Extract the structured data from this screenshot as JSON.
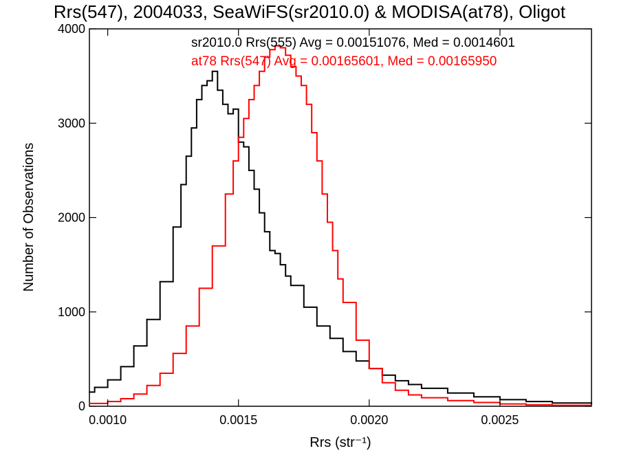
{
  "chart_data": {
    "type": "line",
    "title": "Rrs(547), 2004033, SeaWiFS(sr2010.0) & MODISA(at78), Oligot",
    "xlabel": "Rrs (str⁻¹)",
    "ylabel": "Number of Observations",
    "xlim": [
      0.00093,
      0.00285
    ],
    "ylim": [
      0,
      4000
    ],
    "x_ticks": [
      0.001,
      0.0015,
      0.002,
      0.0025
    ],
    "x_tick_labels": [
      "0.0010",
      "0.0015",
      "0.0020",
      "0.0025"
    ],
    "y_ticks": [
      0,
      1000,
      2000,
      3000,
      4000
    ],
    "y_tick_labels": [
      "0",
      "1000",
      "2000",
      "3000",
      "4000"
    ],
    "grid": false,
    "legend_position": "top-right",
    "annotations": [
      {
        "text": "sr2010.0 Rrs(555) Avg = 0.00151076, Med = 0.0014601",
        "color": "#000000"
      },
      {
        "text": "at78 Rrs(547) Avg = 0.00165601, Med = 0.00165950",
        "color": "#ff0000"
      }
    ],
    "series": [
      {
        "color": "#000000",
        "x": [
          0.00093,
          0.00095,
          0.001,
          0.00105,
          0.0011,
          0.00115,
          0.0012,
          0.00125,
          0.00128,
          0.0013,
          0.00132,
          0.00134,
          0.00136,
          0.00138,
          0.0014,
          0.00142,
          0.00144,
          0.00146,
          0.00148,
          0.0015,
          0.00152,
          0.00154,
          0.00156,
          0.00158,
          0.0016,
          0.00162,
          0.00164,
          0.00166,
          0.00168,
          0.0017,
          0.00175,
          0.0018,
          0.00185,
          0.0019,
          0.00195,
          0.002,
          0.00205,
          0.0021,
          0.00215,
          0.0022,
          0.0023,
          0.0024,
          0.0025,
          0.0026,
          0.0027,
          0.00285
        ],
        "y": [
          150,
          200,
          280,
          420,
          640,
          920,
          1320,
          1900,
          2350,
          2650,
          2950,
          3250,
          3400,
          3450,
          3550,
          3350,
          3200,
          3100,
          3150,
          2800,
          2750,
          2500,
          2300,
          2050,
          1850,
          1650,
          1620,
          1500,
          1380,
          1280,
          1050,
          850,
          720,
          580,
          480,
          400,
          330,
          270,
          230,
          190,
          140,
          100,
          70,
          50,
          35,
          20
        ]
      },
      {
        "color": "#ff0000",
        "x": [
          0.00093,
          0.001,
          0.00105,
          0.0011,
          0.00115,
          0.0012,
          0.00125,
          0.0013,
          0.00135,
          0.0014,
          0.00145,
          0.00148,
          0.0015,
          0.00152,
          0.00154,
          0.00156,
          0.00158,
          0.0016,
          0.00162,
          0.00164,
          0.00166,
          0.00168,
          0.0017,
          0.00172,
          0.00174,
          0.00176,
          0.00178,
          0.0018,
          0.00182,
          0.00184,
          0.00186,
          0.00188,
          0.0019,
          0.00195,
          0.002,
          0.00205,
          0.0021,
          0.00215,
          0.0022,
          0.0023,
          0.0024,
          0.0025,
          0.0026,
          0.0027,
          0.00285
        ],
        "y": [
          30,
          50,
          80,
          130,
          220,
          350,
          560,
          850,
          1250,
          1700,
          2250,
          2600,
          2850,
          3050,
          3250,
          3400,
          3550,
          3700,
          3780,
          3820,
          3800,
          3720,
          3600,
          3500,
          3400,
          3200,
          2900,
          2600,
          2250,
          1950,
          1650,
          1350,
          1100,
          700,
          400,
          250,
          170,
          120,
          90,
          60,
          40,
          25,
          15,
          10,
          5
        ]
      }
    ]
  }
}
